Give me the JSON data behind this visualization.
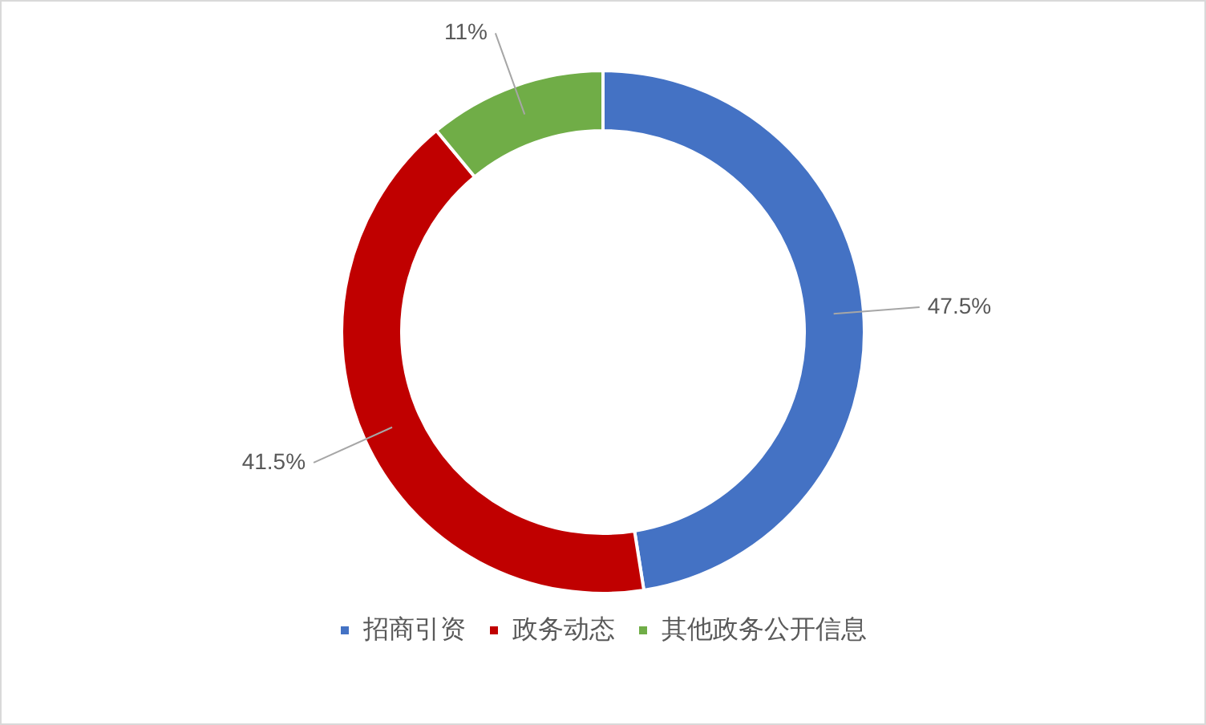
{
  "chart_data": {
    "type": "donut",
    "categories": [
      "招商引资",
      "政务动态",
      "其他政务公开信息"
    ],
    "values": [
      47.5,
      41.5,
      11
    ],
    "colors": [
      "#4472c4",
      "#c00000",
      "#70ad47"
    ],
    "value_labels": [
      "47.5%",
      "41.5%",
      "11%"
    ],
    "legend": "bottom"
  }
}
